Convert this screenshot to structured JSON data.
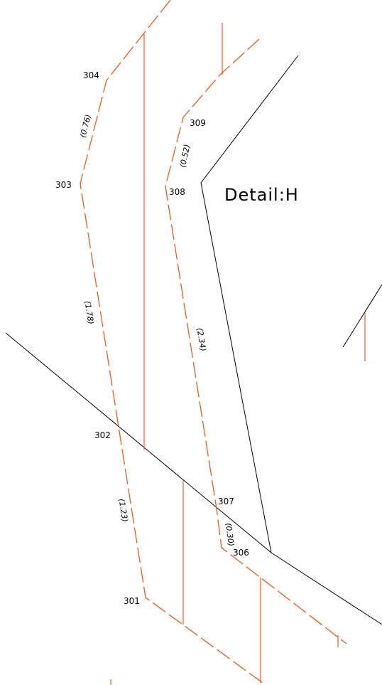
{
  "title": "Detail:H",
  "points": [
    {
      "label": "301"
    },
    {
      "label": "302"
    },
    {
      "label": "303"
    },
    {
      "label": "304"
    },
    {
      "label": "306"
    },
    {
      "label": "307"
    },
    {
      "label": "308"
    },
    {
      "label": "309"
    }
  ],
  "dimensions": [
    {
      "label": "(0.76)"
    },
    {
      "label": "(1.78)"
    },
    {
      "label": "(1.23)"
    },
    {
      "label": "(0.52)"
    },
    {
      "label": "(2.34)"
    },
    {
      "label": "(0.30)"
    }
  ]
}
